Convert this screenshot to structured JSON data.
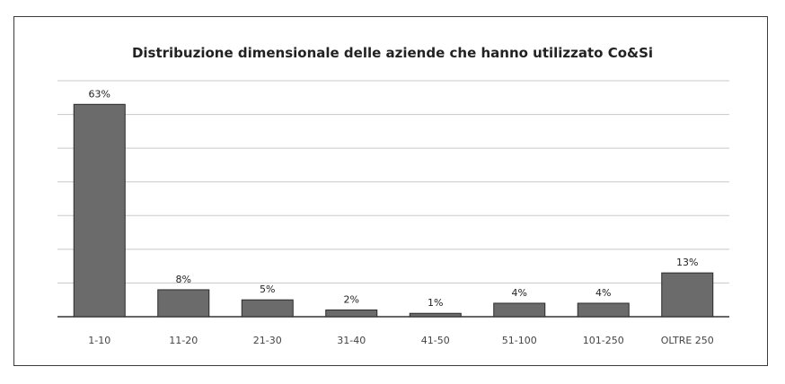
{
  "chart_data": {
    "type": "bar",
    "title": "Distribuzione dimensionale delle aziende che hanno utilizzato Co&Si",
    "categories": [
      "1-10",
      "11-20",
      "21-30",
      "31-40",
      "41-50",
      "51-100",
      "101-250",
      "OLTRE 250"
    ],
    "values": [
      63,
      8,
      5,
      2,
      1,
      4,
      4,
      13
    ],
    "value_labels": [
      "63%",
      "8%",
      "5%",
      "2%",
      "1%",
      "4%",
      "4%",
      "13%"
    ],
    "ylim": [
      0,
      70
    ],
    "grid": true,
    "bar_color": "#6b6b6b",
    "xlabel": "",
    "ylabel": ""
  }
}
